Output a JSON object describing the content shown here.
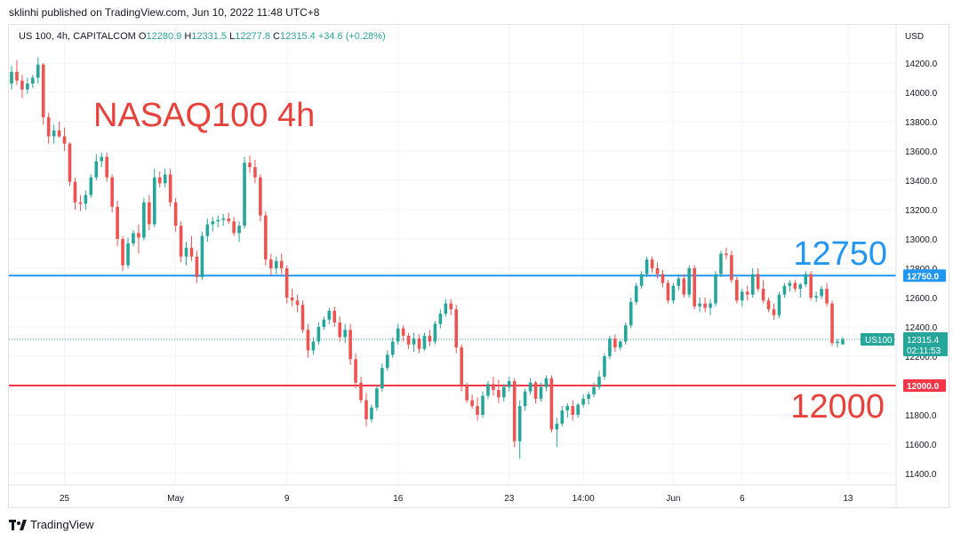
{
  "header": {
    "published_text": "sklinhi published on TradingView.com, Jun 10, 2022 11:48 UTC+8"
  },
  "symbol_bar": {
    "symbol": "US 100, 4h, CAPITALCOM",
    "open_label": "O",
    "open": "12280.9",
    "high_label": "H",
    "high": "12331.5",
    "low_label": "L",
    "low": "12277.8",
    "close_label": "C",
    "close": "12315.4",
    "change": "+34.6 (+0.28%)"
  },
  "footer": {
    "brand": "TradingView"
  },
  "colors": {
    "up": "#26a69a",
    "down": "#ef5350",
    "blue_line": "#2196f3",
    "red_line": "#f23645",
    "red_text": "#e8413a",
    "blue_text": "#2196f3"
  },
  "chart_data": {
    "type": "candlestick",
    "currency_label": "USD",
    "y_range": [
      11300,
      14350
    ],
    "y_ticks": [
      11400,
      11600,
      11800,
      12000,
      12200,
      12400,
      12600,
      12800,
      13000,
      13200,
      13400,
      13600,
      13800,
      14000,
      14200
    ],
    "y_tick_labels": [
      "11400.0",
      "11600.0",
      "11800.0",
      "12000.0",
      "12200.0",
      "12400.0",
      "12600.0",
      "12800.0",
      "13000.0",
      "13200.0",
      "13400.0",
      "13600.0",
      "13800.0",
      "14000.0",
      "14200.0"
    ],
    "x_tick_labels": [
      "25",
      "May",
      "9",
      "16",
      "23",
      "14:00",
      "Jun",
      "6",
      "13"
    ],
    "x_tick_bar_index": [
      10,
      31,
      52,
      73,
      94,
      108,
      125,
      138,
      158
    ],
    "grid": true,
    "horizontal_levels": [
      {
        "value": 12750,
        "label": "12750.0",
        "color": "#2196f3"
      },
      {
        "value": 12000,
        "label": "12000.0",
        "color": "#f23645"
      }
    ],
    "last_price": {
      "symbol": "US100",
      "value": "12315.4",
      "countdown": "02:11:53",
      "value_num": 12315.4
    },
    "annotations": [
      {
        "text": "NASAQ100 4h",
        "color": "#e8413a"
      },
      {
        "text": "12750",
        "color": "#2196f3"
      },
      {
        "text": "12000",
        "color": "#e8413a"
      }
    ],
    "candles": [
      [
        14060,
        14180,
        14020,
        14140
      ],
      [
        14140,
        14220,
        14050,
        14080
      ],
      [
        14080,
        14120,
        13960,
        14020
      ],
      [
        14020,
        14100,
        13990,
        14060
      ],
      [
        14060,
        14120,
        14030,
        14100
      ],
      [
        14100,
        14240,
        14060,
        14190
      ],
      [
        14190,
        14200,
        13780,
        13830
      ],
      [
        13830,
        13860,
        13650,
        13700
      ],
      [
        13700,
        13780,
        13650,
        13740
      ],
      [
        13740,
        13800,
        13690,
        13700
      ],
      [
        13700,
        13760,
        13600,
        13650
      ],
      [
        13650,
        13660,
        13360,
        13390
      ],
      [
        13390,
        13420,
        13200,
        13250
      ],
      [
        13250,
        13300,
        13190,
        13240
      ],
      [
        13240,
        13330,
        13200,
        13300
      ],
      [
        13300,
        13440,
        13280,
        13420
      ],
      [
        13420,
        13580,
        13400,
        13530
      ],
      [
        13530,
        13590,
        13490,
        13560
      ],
      [
        13560,
        13590,
        13390,
        13420
      ],
      [
        13420,
        13440,
        13180,
        13220
      ],
      [
        13220,
        13260,
        12950,
        13000
      ],
      [
        13000,
        13020,
        12780,
        12820
      ],
      [
        12820,
        13010,
        12800,
        12970
      ],
      [
        12970,
        13060,
        12950,
        13040
      ],
      [
        13040,
        13100,
        12900,
        13010
      ],
      [
        13010,
        13280,
        12990,
        13250
      ],
      [
        13250,
        13300,
        13060,
        13100
      ],
      [
        13100,
        13480,
        13080,
        13420
      ],
      [
        13420,
        13460,
        13350,
        13380
      ],
      [
        13380,
        13480,
        13350,
        13440
      ],
      [
        13440,
        13480,
        13220,
        13250
      ],
      [
        13250,
        13280,
        13050,
        13090
      ],
      [
        13090,
        13120,
        12840,
        12880
      ],
      [
        12880,
        12980,
        12820,
        12940
      ],
      [
        12940,
        13020,
        12850,
        12880
      ],
      [
        12880,
        12920,
        12700,
        12740
      ],
      [
        12740,
        13050,
        12720,
        13020
      ],
      [
        13020,
        13140,
        12980,
        13100
      ],
      [
        13100,
        13150,
        13050,
        13120
      ],
      [
        13120,
        13160,
        13080,
        13130
      ],
      [
        13130,
        13170,
        13090,
        13140
      ],
      [
        13140,
        13180,
        13100,
        13120
      ],
      [
        13120,
        13150,
        13020,
        13040
      ],
      [
        13040,
        13120,
        12980,
        13090
      ],
      [
        13090,
        13560,
        13070,
        13520
      ],
      [
        13520,
        13570,
        13450,
        13490
      ],
      [
        13490,
        13540,
        13380,
        13420
      ],
      [
        13420,
        13440,
        13120,
        13160
      ],
      [
        13160,
        13190,
        12820,
        12860
      ],
      [
        12860,
        12900,
        12750,
        12800
      ],
      [
        12800,
        12880,
        12760,
        12850
      ],
      [
        12850,
        12900,
        12760,
        12800
      ],
      [
        12800,
        12820,
        12560,
        12600
      ],
      [
        12600,
        12660,
        12540,
        12580
      ],
      [
        12580,
        12620,
        12500,
        12550
      ],
      [
        12550,
        12580,
        12360,
        12380
      ],
      [
        12380,
        12420,
        12190,
        12240
      ],
      [
        12240,
        12330,
        12210,
        12300
      ],
      [
        12300,
        12430,
        12280,
        12400
      ],
      [
        12400,
        12470,
        12380,
        12450
      ],
      [
        12450,
        12530,
        12420,
        12510
      ],
      [
        12510,
        12540,
        12400,
        12430
      ],
      [
        12430,
        12470,
        12300,
        12330
      ],
      [
        12330,
        12420,
        12290,
        12380
      ],
      [
        12380,
        12420,
        12140,
        12180
      ],
      [
        12180,
        12220,
        11980,
        12020
      ],
      [
        12020,
        12060,
        11880,
        11900
      ],
      [
        11900,
        11950,
        11720,
        11770
      ],
      [
        11770,
        11870,
        11750,
        11850
      ],
      [
        11850,
        12000,
        11830,
        11980
      ],
      [
        11980,
        12150,
        11960,
        12120
      ],
      [
        12120,
        12240,
        12100,
        12210
      ],
      [
        12210,
        12330,
        12190,
        12300
      ],
      [
        12300,
        12420,
        12280,
        12390
      ],
      [
        12390,
        12410,
        12300,
        12340
      ],
      [
        12340,
        12360,
        12250,
        12280
      ],
      [
        12280,
        12360,
        12230,
        12320
      ],
      [
        12320,
        12350,
        12220,
        12250
      ],
      [
        12250,
        12360,
        12240,
        12340
      ],
      [
        12340,
        12380,
        12270,
        12300
      ],
      [
        12300,
        12440,
        12280,
        12420
      ],
      [
        12420,
        12520,
        12390,
        12490
      ],
      [
        12490,
        12590,
        12470,
        12560
      ],
      [
        12560,
        12590,
        12480,
        12520
      ],
      [
        12520,
        12550,
        12220,
        12260
      ],
      [
        12260,
        12280,
        11960,
        12000
      ],
      [
        12000,
        12020,
        11880,
        11900
      ],
      [
        11900,
        11940,
        11840,
        11860
      ],
      [
        11860,
        11920,
        11760,
        11800
      ],
      [
        11800,
        11960,
        11780,
        11930
      ],
      [
        11930,
        12030,
        11910,
        12010
      ],
      [
        12010,
        12060,
        11930,
        11970
      ],
      [
        11970,
        12040,
        11880,
        11920
      ],
      [
        11920,
        12010,
        11890,
        11990
      ],
      [
        11990,
        12060,
        11960,
        12030
      ],
      [
        12030,
        12050,
        11580,
        11620
      ],
      [
        11620,
        11900,
        11500,
        11860
      ],
      [
        11860,
        11980,
        11830,
        11960
      ],
      [
        11960,
        12050,
        11940,
        12020
      ],
      [
        12020,
        12030,
        11880,
        11910
      ],
      [
        11910,
        12020,
        11890,
        11990
      ],
      [
        11990,
        12070,
        11960,
        12050
      ],
      [
        12050,
        12070,
        11680,
        11700
      ],
      [
        11700,
        11780,
        11580,
        11740
      ],
      [
        11740,
        11860,
        11720,
        11830
      ],
      [
        11830,
        11880,
        11780,
        11860
      ],
      [
        11860,
        11900,
        11760,
        11800
      ],
      [
        11800,
        11880,
        11780,
        11870
      ],
      [
        11870,
        11940,
        11850,
        11910
      ],
      [
        11910,
        11960,
        11870,
        11940
      ],
      [
        11940,
        12020,
        11920,
        11990
      ],
      [
        11990,
        12100,
        11970,
        12060
      ],
      [
        12060,
        12220,
        12040,
        12200
      ],
      [
        12200,
        12340,
        12180,
        12320
      ],
      [
        12320,
        12350,
        12230,
        12260
      ],
      [
        12260,
        12310,
        12240,
        12300
      ],
      [
        12300,
        12430,
        12280,
        12410
      ],
      [
        12410,
        12600,
        12390,
        12570
      ],
      [
        12570,
        12700,
        12550,
        12680
      ],
      [
        12680,
        12780,
        12660,
        12760
      ],
      [
        12760,
        12880,
        12740,
        12860
      ],
      [
        12860,
        12880,
        12770,
        12800
      ],
      [
        12800,
        12840,
        12730,
        12760
      ],
      [
        12760,
        12790,
        12670,
        12700
      ],
      [
        12700,
        12720,
        12560,
        12580
      ],
      [
        12580,
        12700,
        12560,
        12680
      ],
      [
        12680,
        12760,
        12650,
        12730
      ],
      [
        12730,
        12760,
        12600,
        12620
      ],
      [
        12620,
        12820,
        12600,
        12800
      ],
      [
        12800,
        12820,
        12520,
        12540
      ],
      [
        12540,
        12600,
        12500,
        12560
      ],
      [
        12560,
        12600,
        12500,
        12530
      ],
      [
        12530,
        12590,
        12480,
        12560
      ],
      [
        12560,
        12780,
        12540,
        12760
      ],
      [
        12760,
        12920,
        12740,
        12900
      ],
      [
        12900,
        12940,
        12860,
        12890
      ],
      [
        12890,
        12920,
        12700,
        12720
      ],
      [
        12720,
        12740,
        12560,
        12580
      ],
      [
        12580,
        12660,
        12540,
        12640
      ],
      [
        12640,
        12680,
        12580,
        12620
      ],
      [
        12620,
        12800,
        12600,
        12760
      ],
      [
        12760,
        12800,
        12640,
        12660
      ],
      [
        12660,
        12720,
        12560,
        12580
      ],
      [
        12580,
        12600,
        12500,
        12520
      ],
      [
        12520,
        12560,
        12450,
        12480
      ],
      [
        12480,
        12640,
        12460,
        12620
      ],
      [
        12620,
        12700,
        12600,
        12680
      ],
      [
        12680,
        12720,
        12640,
        12700
      ],
      [
        12700,
        12720,
        12640,
        12660
      ],
      [
        12660,
        12700,
        12600,
        12690
      ],
      [
        12690,
        12780,
        12670,
        12760
      ],
      [
        12760,
        12780,
        12580,
        12600
      ],
      [
        12600,
        12640,
        12570,
        12610
      ],
      [
        12610,
        12680,
        12590,
        12660
      ],
      [
        12660,
        12700,
        12540,
        12560
      ],
      [
        12560,
        12580,
        12270,
        12290
      ],
      [
        12290,
        12320,
        12260,
        12300
      ],
      [
        12280.9,
        12331.5,
        12277.8,
        12315.4
      ]
    ]
  }
}
